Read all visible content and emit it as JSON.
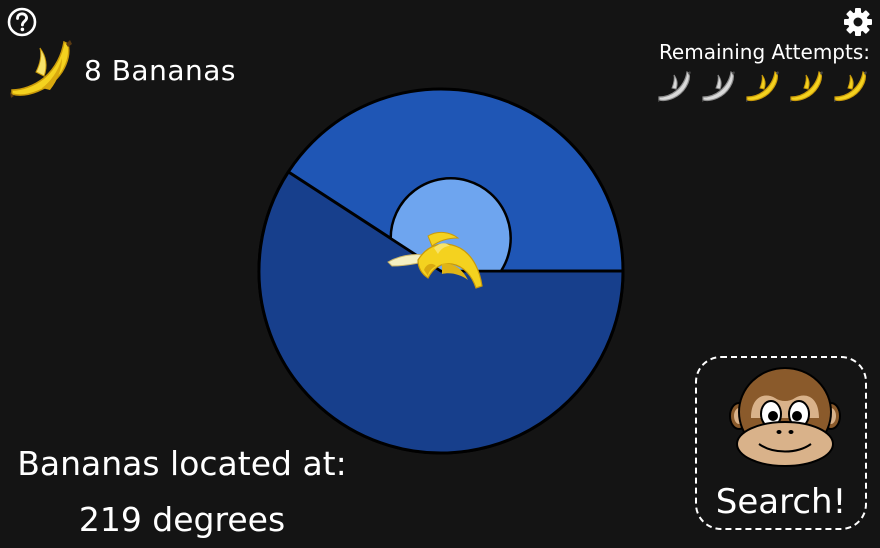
{
  "header": {
    "help_icon": "question-circle-icon",
    "settings_icon": "gear-icon"
  },
  "bananas": {
    "icon": "banana-icon",
    "count_text": "8 Bananas"
  },
  "attempts": {
    "label": "Remaining Attempts:",
    "total": 5,
    "remaining": 3,
    "used_color": "#d9d9d9",
    "remaining_color": "#f4d21f"
  },
  "dial": {
    "outer_color": "#1f56b5",
    "highlight_color": "#173f8c",
    "inner_color": "#6ea5ef",
    "highlight_start_degrees": 0,
    "highlight_end_degrees": 213,
    "center_icon": "peeled-banana-icon"
  },
  "location": {
    "line1": "Bananas located at:",
    "line2": "219 degrees"
  },
  "search": {
    "label": "Search!",
    "icon": "monkey-face-icon"
  }
}
